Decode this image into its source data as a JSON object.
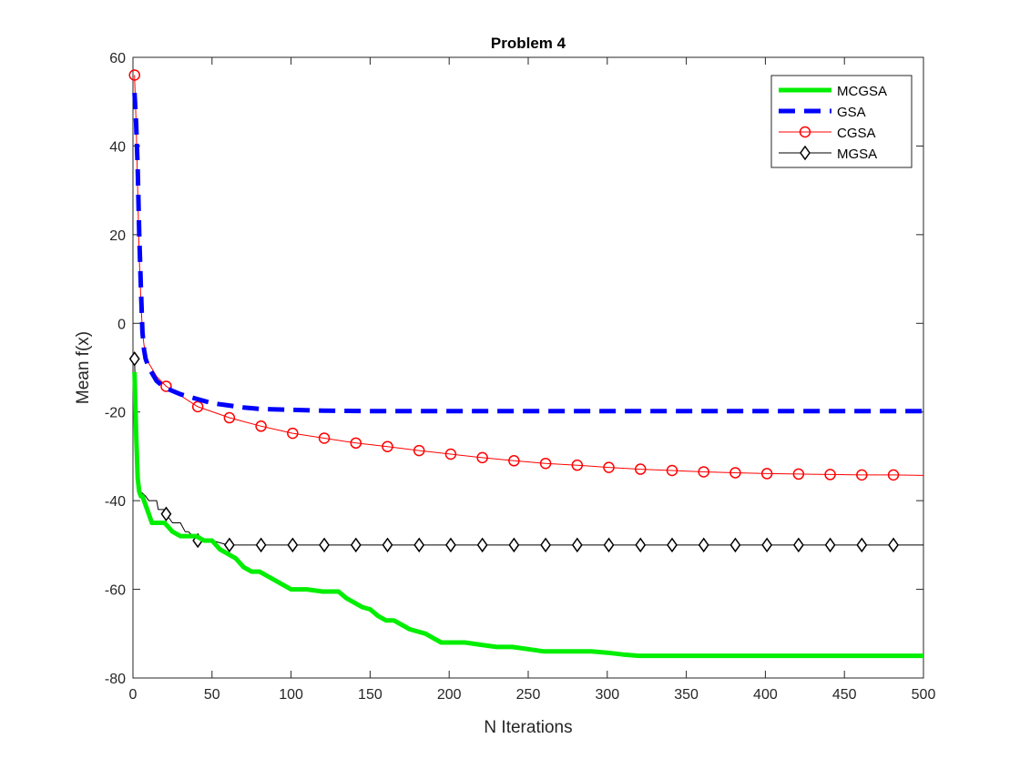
{
  "chart_data": {
    "type": "line",
    "title": "Problem 4",
    "xlabel": "N Iterations",
    "ylabel": "Mean f(x)",
    "xlim": [
      0,
      500
    ],
    "ylim": [
      -80,
      60
    ],
    "xticks": [
      0,
      50,
      100,
      150,
      200,
      250,
      300,
      350,
      400,
      450,
      500
    ],
    "yticks": [
      -80,
      -60,
      -40,
      -20,
      0,
      20,
      40,
      60
    ],
    "grid": false,
    "legend_position": "top-right",
    "series": [
      {
        "name": "MCGSA",
        "color": "#00ee00",
        "style": "solid-thick",
        "marker": "none",
        "x": [
          1,
          2,
          3,
          4,
          5,
          6,
          8,
          10,
          12,
          15,
          20,
          25,
          30,
          35,
          40,
          45,
          50,
          55,
          60,
          65,
          70,
          75,
          80,
          85,
          90,
          95,
          100,
          110,
          120,
          130,
          135,
          140,
          145,
          150,
          155,
          160,
          165,
          170,
          175,
          180,
          185,
          190,
          195,
          200,
          210,
          220,
          230,
          240,
          250,
          260,
          270,
          280,
          290,
          300,
          310,
          320,
          330,
          340,
          350,
          400,
          450,
          500
        ],
        "y": [
          -11,
          -25,
          -35,
          -38,
          -39,
          -39,
          -41,
          -43,
          -45,
          -45,
          -45,
          -47,
          -48,
          -48,
          -48,
          -49,
          -49,
          -51,
          -52,
          -53,
          -55,
          -56,
          -56,
          -57,
          -58,
          -59,
          -60,
          -60,
          -60.5,
          -60.5,
          -62,
          -63,
          -64,
          -64.5,
          -66,
          -67,
          -67,
          -68,
          -69,
          -69.5,
          -70,
          -71,
          -72,
          -72,
          -72,
          -72.5,
          -73,
          -73,
          -73.5,
          -74,
          -74,
          -74,
          -74,
          -74.3,
          -74.7,
          -75,
          -75,
          -75,
          -75,
          -75,
          -75,
          -75
        ]
      },
      {
        "name": "GSA",
        "color": "#0000ff",
        "style": "dashed-thick",
        "marker": "none",
        "x": [
          1,
          2,
          3,
          4,
          5,
          6,
          7,
          8,
          10,
          15,
          20,
          30,
          40,
          50,
          60,
          70,
          80,
          100,
          120,
          150,
          200,
          300,
          400,
          500
        ],
        "y": [
          52,
          45,
          35,
          20,
          8,
          -2,
          -6,
          -8,
          -10,
          -13,
          -14.5,
          -16,
          -17,
          -18,
          -18.5,
          -19,
          -19.3,
          -19.5,
          -19.7,
          -19.8,
          -19.8,
          -19.8,
          -19.8,
          -19.8
        ]
      },
      {
        "name": "CGSA",
        "color": "#ff0000",
        "style": "solid-thin",
        "marker": "circle",
        "x": [
          1,
          2,
          3,
          4,
          5,
          6,
          7,
          8,
          10,
          15,
          21,
          41,
          61,
          81,
          101,
          121,
          141,
          161,
          181,
          201,
          221,
          241,
          261,
          281,
          301,
          321,
          341,
          361,
          381,
          401,
          421,
          441,
          461,
          481,
          500
        ],
        "y": [
          56,
          45,
          30,
          15,
          5,
          -2,
          -5,
          -7,
          -9,
          -12,
          -14.2,
          -18.8,
          -21.3,
          -23.2,
          -24.8,
          -25.9,
          -27,
          -27.8,
          -28.7,
          -29.5,
          -30.3,
          -31,
          -31.6,
          -32,
          -32.5,
          -32.9,
          -33.2,
          -33.5,
          -33.7,
          -33.9,
          -34,
          -34.1,
          -34.2,
          -34.2,
          -34.3
        ],
        "marker_x": [
          1,
          21,
          41,
          61,
          81,
          101,
          121,
          141,
          161,
          181,
          201,
          221,
          241,
          261,
          281,
          301,
          321,
          341,
          361,
          381,
          401,
          421,
          441,
          461,
          481
        ]
      },
      {
        "name": "MGSA",
        "color": "#000000",
        "style": "solid-thin",
        "marker": "diamond",
        "x": [
          1,
          3,
          5,
          8,
          10,
          15,
          16,
          20,
          21,
          25,
          30,
          33,
          35,
          41,
          50,
          55,
          60,
          61,
          500
        ],
        "y": [
          -8,
          -35,
          -38,
          -39,
          -40,
          -40,
          -42,
          -42,
          -43,
          -45,
          -45,
          -47,
          -47,
          -49,
          -49,
          -49.5,
          -50,
          -50,
          -50
        ],
        "marker_x": [
          1,
          21,
          41,
          61,
          81,
          101,
          121,
          141,
          161,
          181,
          201,
          221,
          241,
          261,
          281,
          301,
          321,
          341,
          361,
          381,
          401,
          421,
          441,
          461,
          481
        ]
      }
    ]
  }
}
